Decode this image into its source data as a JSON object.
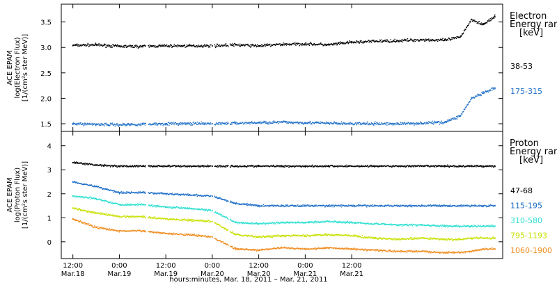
{
  "chart_data": [
    {
      "type": "scatter",
      "panel": "electron",
      "ylabel": [
        "ACE EPAM",
        "log(Electron Flux)",
        "[1/(cm²s ster MeV)]"
      ],
      "ylim": [
        1.35,
        3.85
      ],
      "yticks": [
        1.5,
        2.0,
        2.5,
        3.0,
        3.5
      ],
      "yticklabels": [
        "1.5",
        "2.0",
        "2.5",
        "3.0",
        "3.5"
      ],
      "legend": {
        "title": [
          "Electron",
          "Energy ranges",
          "[keV]"
        ],
        "placement": "right"
      },
      "series": [
        {
          "name": "38-53",
          "color": "#000000",
          "points": [
            [
              0,
              3.04
            ],
            [
              6,
              3.05
            ],
            [
              12,
              3.02
            ],
            [
              18,
              3.02
            ],
            [
              24,
              3.03
            ],
            [
              30,
              3.03
            ],
            [
              36,
              3.03
            ],
            [
              42,
              3.05
            ],
            [
              48,
              3.03
            ],
            [
              54,
              3.06
            ],
            [
              60,
              3.07
            ],
            [
              66,
              3.05
            ],
            [
              72,
              3.1
            ],
            [
              78,
              3.12
            ],
            [
              84,
              3.13
            ],
            [
              90,
              3.15
            ],
            [
              96,
              3.14
            ],
            [
              100,
              3.2
            ],
            [
              103,
              3.55
            ],
            [
              106,
              3.45
            ],
            [
              109,
              3.6
            ]
          ]
        },
        {
          "name": "175-315",
          "color": "#1e6fc8",
          "points": [
            [
              0,
              1.5
            ],
            [
              6,
              1.49
            ],
            [
              12,
              1.48
            ],
            [
              18,
              1.49
            ],
            [
              24,
              1.5
            ],
            [
              30,
              1.5
            ],
            [
              36,
              1.5
            ],
            [
              42,
              1.51
            ],
            [
              48,
              1.52
            ],
            [
              54,
              1.53
            ],
            [
              60,
              1.52
            ],
            [
              66,
              1.51
            ],
            [
              72,
              1.5
            ],
            [
              78,
              1.5
            ],
            [
              84,
              1.5
            ],
            [
              90,
              1.51
            ],
            [
              96,
              1.53
            ],
            [
              100,
              1.65
            ],
            [
              103,
              2.0
            ],
            [
              106,
              2.1
            ],
            [
              109,
              2.2
            ]
          ]
        }
      ]
    },
    {
      "type": "scatter",
      "panel": "proton",
      "ylabel": [
        "ACE EPAM",
        "log(Proton Flux)",
        "[1/(cm²s ster MeV)]"
      ],
      "ylim": [
        -0.7,
        4.6
      ],
      "yticks": [
        0,
        1,
        2,
        3,
        4
      ],
      "yticklabels": [
        "0",
        "1",
        "2",
        "3",
        "4"
      ],
      "legend": {
        "title": [
          "Proton",
          "Energy ranges",
          "[keV]"
        ],
        "placement": "right"
      },
      "series": [
        {
          "name": "47-68",
          "color": "#000000",
          "points": [
            [
              0,
              3.3
            ],
            [
              6,
              3.2
            ],
            [
              12,
              3.15
            ],
            [
              18,
              3.15
            ],
            [
              24,
              3.15
            ],
            [
              30,
              3.15
            ],
            [
              36,
              3.15
            ],
            [
              42,
              3.15
            ],
            [
              48,
              3.15
            ],
            [
              54,
              3.15
            ],
            [
              60,
              3.15
            ],
            [
              66,
              3.15
            ],
            [
              72,
              3.15
            ],
            [
              78,
              3.15
            ],
            [
              84,
              3.15
            ],
            [
              90,
              3.15
            ],
            [
              96,
              3.15
            ],
            [
              100,
              3.15
            ],
            [
              103,
              3.15
            ],
            [
              106,
              3.15
            ],
            [
              109,
              3.15
            ]
          ]
        },
        {
          "name": "115-195",
          "color": "#1e6fc8",
          "points": [
            [
              0,
              2.5
            ],
            [
              6,
              2.3
            ],
            [
              12,
              2.05
            ],
            [
              18,
              2.05
            ],
            [
              24,
              2.0
            ],
            [
              30,
              1.95
            ],
            [
              36,
              1.9
            ],
            [
              42,
              1.6
            ],
            [
              48,
              1.5
            ],
            [
              54,
              1.5
            ],
            [
              60,
              1.5
            ],
            [
              66,
              1.5
            ],
            [
              72,
              1.5
            ],
            [
              78,
              1.5
            ],
            [
              84,
              1.5
            ],
            [
              90,
              1.5
            ],
            [
              96,
              1.5
            ],
            [
              100,
              1.5
            ],
            [
              103,
              1.5
            ],
            [
              106,
              1.5
            ],
            [
              109,
              1.5
            ]
          ]
        },
        {
          "name": "310-580",
          "color": "#2ee0d0",
          "points": [
            [
              0,
              1.9
            ],
            [
              6,
              1.8
            ],
            [
              12,
              1.55
            ],
            [
              18,
              1.55
            ],
            [
              24,
              1.45
            ],
            [
              30,
              1.4
            ],
            [
              36,
              1.3
            ],
            [
              42,
              0.8
            ],
            [
              48,
              0.75
            ],
            [
              54,
              0.8
            ],
            [
              60,
              0.8
            ],
            [
              66,
              0.85
            ],
            [
              72,
              0.8
            ],
            [
              78,
              0.75
            ],
            [
              84,
              0.7
            ],
            [
              90,
              0.7
            ],
            [
              96,
              0.65
            ],
            [
              100,
              0.65
            ],
            [
              103,
              0.65
            ],
            [
              106,
              0.65
            ],
            [
              109,
              0.65
            ]
          ]
        },
        {
          "name": "795-1193",
          "color": "#c8e000",
          "points": [
            [
              0,
              1.4
            ],
            [
              6,
              1.2
            ],
            [
              12,
              1.05
            ],
            [
              18,
              1.05
            ],
            [
              24,
              0.95
            ],
            [
              30,
              0.9
            ],
            [
              36,
              0.85
            ],
            [
              42,
              0.3
            ],
            [
              48,
              0.2
            ],
            [
              54,
              0.25
            ],
            [
              60,
              0.25
            ],
            [
              66,
              0.3
            ],
            [
              72,
              0.25
            ],
            [
              78,
              0.15
            ],
            [
              84,
              0.1
            ],
            [
              90,
              0.15
            ],
            [
              96,
              0.1
            ],
            [
              100,
              0.1
            ],
            [
              103,
              0.15
            ],
            [
              106,
              0.15
            ],
            [
              109,
              0.15
            ]
          ]
        },
        {
          "name": "1060-1900",
          "color": "#f08c1e",
          "points": [
            [
              0,
              0.95
            ],
            [
              6,
              0.6
            ],
            [
              12,
              0.45
            ],
            [
              18,
              0.45
            ],
            [
              24,
              0.35
            ],
            [
              30,
              0.3
            ],
            [
              36,
              0.2
            ],
            [
              42,
              -0.3
            ],
            [
              48,
              -0.35
            ],
            [
              54,
              -0.25
            ],
            [
              60,
              -0.3
            ],
            [
              66,
              -0.25
            ],
            [
              72,
              -0.3
            ],
            [
              78,
              -0.35
            ],
            [
              84,
              -0.4
            ],
            [
              90,
              -0.4
            ],
            [
              96,
              -0.45
            ],
            [
              100,
              -0.45
            ],
            [
              103,
              -0.4
            ],
            [
              106,
              -0.3
            ],
            [
              109,
              -0.3
            ]
          ]
        }
      ]
    }
  ],
  "xaxis": {
    "title": "hours:minutes, Mar. 18, 2011 – Mar. 21, 2011",
    "xlim": [
      -3,
      111
    ],
    "ticks": [
      {
        "value": 0,
        "time": "12:00",
        "date": "Mar.18"
      },
      {
        "value": 12,
        "time": "0:00",
        "date": "Mar.19"
      },
      {
        "value": 24,
        "time": "12:00",
        "date": "Mar.19"
      },
      {
        "value": 36,
        "time": "0:00",
        "date": "Mar.20"
      },
      {
        "value": 48,
        "time": "12:00",
        "date": "Mar.20"
      },
      {
        "value": 60,
        "time": "0:00",
        "date": "Mar.21"
      },
      {
        "value": 72,
        "time": "12:00",
        "date": "Mar.21"
      }
    ]
  }
}
